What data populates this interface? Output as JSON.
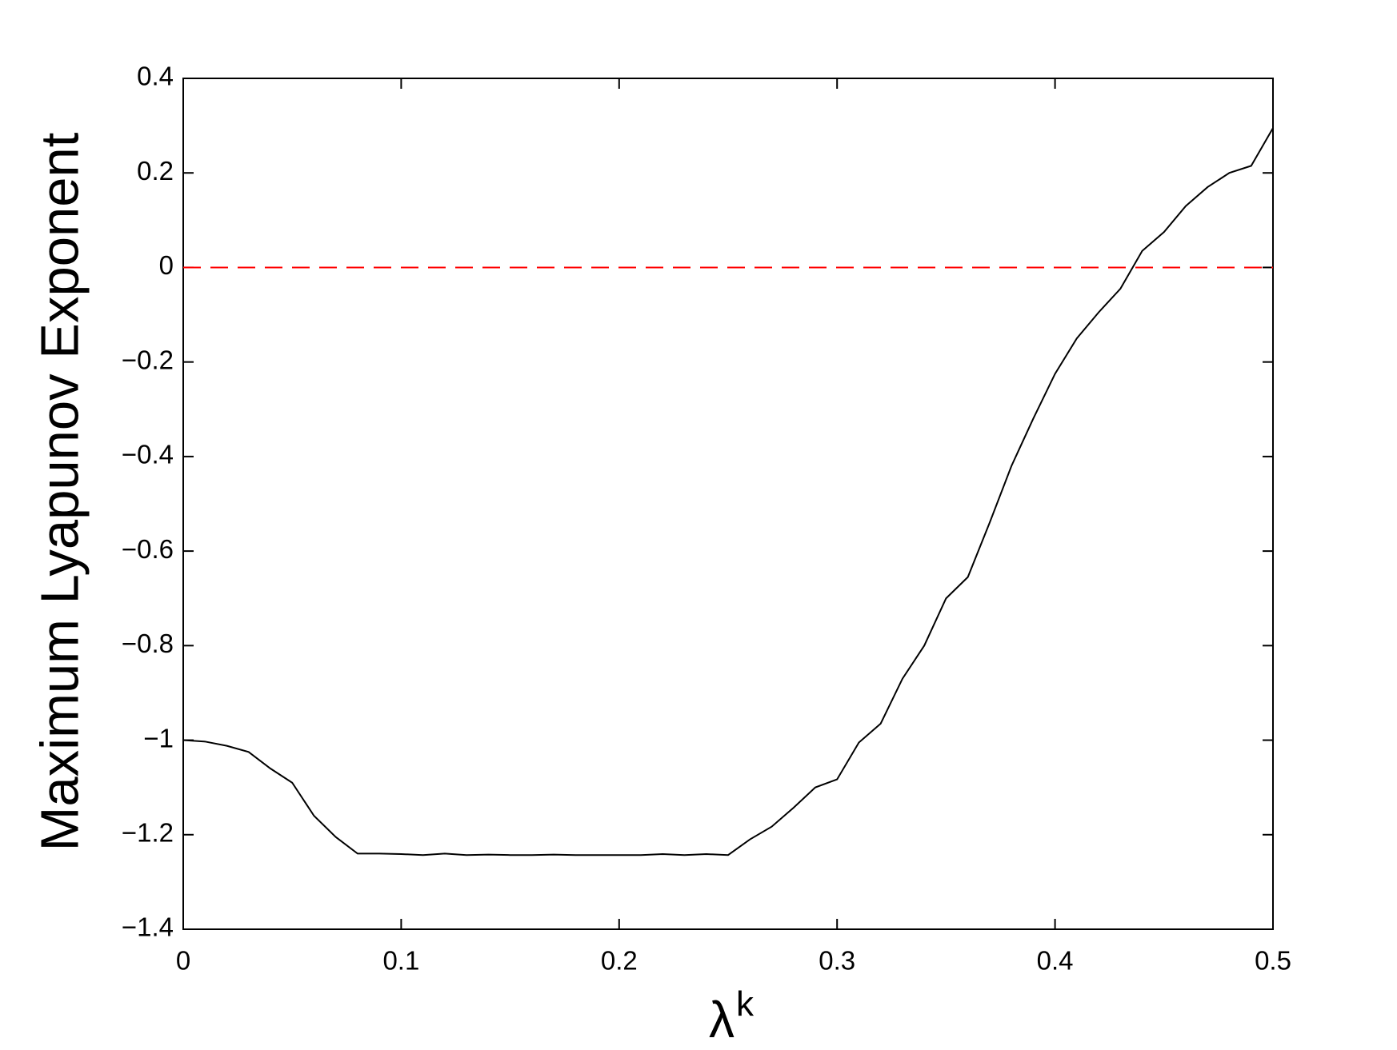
{
  "chart_data": {
    "type": "line",
    "xlabel": "λ",
    "xlabel_superscript": "k",
    "ylabel": "Maximum Lyapunov Exponent",
    "x": [
      0,
      0.01,
      0.02,
      0.03,
      0.04,
      0.05,
      0.06,
      0.07,
      0.08,
      0.09,
      0.1,
      0.11,
      0.12,
      0.13,
      0.14,
      0.15,
      0.16,
      0.17,
      0.18,
      0.19,
      0.2,
      0.21,
      0.22,
      0.23,
      0.24,
      0.25,
      0.26,
      0.27,
      0.28,
      0.29,
      0.3,
      0.31,
      0.32,
      0.33,
      0.34,
      0.35,
      0.36,
      0.37,
      0.38,
      0.39,
      0.4,
      0.41,
      0.42,
      0.43,
      0.44,
      0.45,
      0.46,
      0.47,
      0.48,
      0.49,
      0.5
    ],
    "series": [
      {
        "color": "#000000",
        "values": [
          -1.0,
          -1.003,
          -1.012,
          -1.025,
          -1.06,
          -1.09,
          -1.16,
          -1.205,
          -1.24,
          -1.24,
          -1.241,
          -1.243,
          -1.24,
          -1.243,
          -1.242,
          -1.243,
          -1.243,
          -1.242,
          -1.243,
          -1.243,
          -1.243,
          -1.243,
          -1.241,
          -1.243,
          -1.241,
          -1.243,
          -1.21,
          -1.183,
          -1.143,
          -1.1,
          -1.083,
          -1.005,
          -0.965,
          -0.87,
          -0.8,
          -0.7,
          -0.655,
          -0.54,
          -0.42,
          -0.32,
          -0.225,
          -0.15,
          -0.095,
          -0.045,
          0.035,
          0.075,
          0.13,
          0.17,
          0.2,
          0.215,
          0.295
        ]
      }
    ],
    "hlines": [
      {
        "y": 0,
        "color": "#ff0000",
        "style": "dashed"
      }
    ],
    "xlim": [
      0,
      0.5
    ],
    "ylim": [
      -1.4,
      0.4
    ],
    "xticks": [
      0,
      0.1,
      0.2,
      0.3,
      0.4,
      0.5
    ],
    "yticks": [
      {
        "value": -1.4,
        "label": "−1.4"
      },
      {
        "value": -1.2,
        "label": "−1.2"
      },
      {
        "value": -1,
        "label": "−1"
      },
      {
        "value": -0.8,
        "label": "−0.8"
      },
      {
        "value": -0.6,
        "label": "−0.6"
      },
      {
        "value": -0.4,
        "label": "−0.4"
      },
      {
        "value": -0.2,
        "label": "−0.2"
      },
      0,
      0.2,
      0.4
    ]
  }
}
